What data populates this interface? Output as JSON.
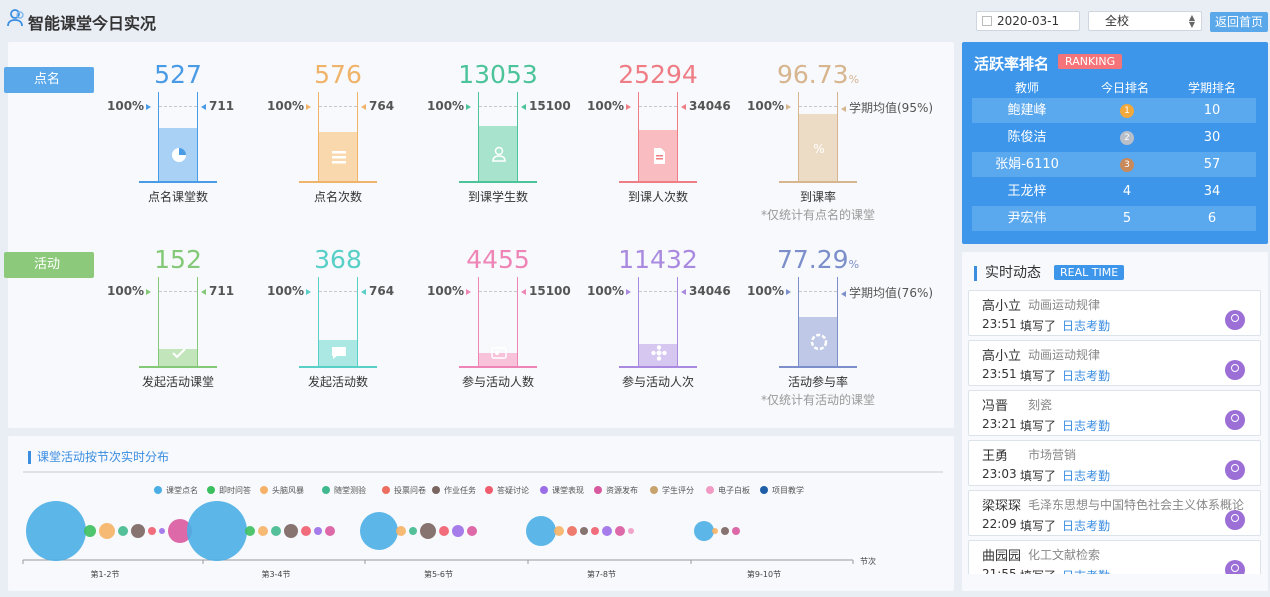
{
  "header": {
    "title": "智能课堂今日实况",
    "date": "2020-03-1",
    "scope": "全校",
    "home_label": "返回首页"
  },
  "rollcall": {
    "tag": "点名",
    "color": "#5aa8ea",
    "metrics": [
      {
        "value": "527",
        "label": "点名课堂数",
        "left": "100%",
        "right": "711",
        "color": "#4a9be6",
        "light": "#a9d0f5",
        "fill": 0.6,
        "icon": "pie-chart-icon"
      },
      {
        "value": "576",
        "label": "点名次数",
        "left": "100%",
        "right": "764",
        "color": "#f0b36a",
        "light": "#fad8ad",
        "fill": 0.55,
        "icon": "list-icon"
      },
      {
        "value": "13053",
        "label": "到课学生数",
        "left": "100%",
        "right": "15100",
        "color": "#4dc39a",
        "light": "#a7e3cd",
        "fill": 0.62,
        "icon": "person-icon"
      },
      {
        "value": "25294",
        "label": "到课人次数",
        "left": "100%",
        "right": "34046",
        "color": "#ef7d86",
        "light": "#f8bcc1",
        "fill": 0.58,
        "icon": "document-icon"
      },
      {
        "value": "96.73",
        "unit": "%",
        "label": "到课率",
        "left": "100%",
        "right": "学期均值(95%)",
        "note": "*仅统计有点名的课堂",
        "color": "#d7b58f",
        "light": "#ecdcc6",
        "fill": 0.75,
        "icon": "percent-icon"
      }
    ]
  },
  "activity": {
    "tag": "活动",
    "color": "#8cc97b",
    "metrics": [
      {
        "value": "152",
        "label": "发起活动课堂",
        "left": "100%",
        "right": "711",
        "color": "#84c978",
        "light": "#c3e5bb",
        "fill": 0.2,
        "icon": "check-icon"
      },
      {
        "value": "368",
        "label": "发起活动数",
        "left": "100%",
        "right": "764",
        "color": "#58cfc7",
        "light": "#ace8e3",
        "fill": 0.3,
        "icon": "chat-icon"
      },
      {
        "value": "4455",
        "label": "参与活动人数",
        "left": "100%",
        "right": "15100",
        "color": "#ef84b7",
        "light": "#f8c2db",
        "fill": 0.15,
        "icon": "card-icon"
      },
      {
        "value": "11432",
        "label": "参与活动人次",
        "left": "100%",
        "right": "34046",
        "color": "#a98ae0",
        "light": "#d6c7f1",
        "fill": 0.25,
        "icon": "flower-icon"
      },
      {
        "value": "77.29",
        "unit": "%",
        "label": "活动参与率",
        "left": "100%",
        "right": "学期均值(76%)",
        "note": "*仅统计有活动的课堂",
        "color": "#7c8fcb",
        "light": "#bfc8e6",
        "fill": 0.55,
        "icon": "ring-icon"
      }
    ]
  },
  "chart_data": {
    "type": "scatter",
    "title": "课堂活动按节次实时分布",
    "xlabel": "节次",
    "categories": [
      "第1-2节",
      "第3-4节",
      "第5-6节",
      "第7-8节",
      "第9-10节"
    ],
    "legend": [
      {
        "name": "课堂点名",
        "color": "#4aaee5"
      },
      {
        "name": "即时问答",
        "color": "#3cbf5e"
      },
      {
        "name": "头脑风暴",
        "color": "#f5b266"
      },
      {
        "name": "随堂测验",
        "color": "#41b98e"
      },
      {
        "name": "投票问卷",
        "color": "#ec6e5e"
      },
      {
        "name": "作业任务",
        "color": "#7a6560"
      },
      {
        "name": "答疑讨论",
        "color": "#ef5d6e"
      },
      {
        "name": "课堂表现",
        "color": "#9b6ee8"
      },
      {
        "name": "资源发布",
        "color": "#d9599f"
      },
      {
        "name": "学生评分",
        "color": "#c9a36e"
      },
      {
        "name": "电子白板",
        "color": "#f19ac4"
      },
      {
        "name": "项目教学",
        "color": "#1f5fa8"
      }
    ],
    "bubbles": [
      {
        "slot": "第1-2节",
        "series": "课堂点名",
        "size": 30
      },
      {
        "slot": "第1-2节",
        "series": "即时问答",
        "size": 6
      },
      {
        "slot": "第1-2节",
        "series": "头脑风暴",
        "size": 8
      },
      {
        "slot": "第1-2节",
        "series": "随堂测验",
        "size": 5
      },
      {
        "slot": "第1-2节",
        "series": "作业任务",
        "size": 7
      },
      {
        "slot": "第1-2节",
        "series": "答疑讨论",
        "size": 4
      },
      {
        "slot": "第1-2节",
        "series": "课堂表现",
        "size": 3
      },
      {
        "slot": "第1-2节",
        "series": "资源发布",
        "size": 12
      },
      {
        "slot": "第3-4节",
        "series": "课堂点名",
        "size": 30
      },
      {
        "slot": "第3-4节",
        "series": "即时问答",
        "size": 5
      },
      {
        "slot": "第3-4节",
        "series": "头脑风暴",
        "size": 5
      },
      {
        "slot": "第3-4节",
        "series": "随堂测验",
        "size": 5
      },
      {
        "slot": "第3-4节",
        "series": "作业任务",
        "size": 7
      },
      {
        "slot": "第3-4节",
        "series": "答疑讨论",
        "size": 5
      },
      {
        "slot": "第3-4节",
        "series": "课堂表现",
        "size": 4
      },
      {
        "slot": "第3-4节",
        "series": "资源发布",
        "size": 5
      },
      {
        "slot": "第5-6节",
        "series": "课堂点名",
        "size": 19
      },
      {
        "slot": "第5-6节",
        "series": "头脑风暴",
        "size": 5
      },
      {
        "slot": "第5-6节",
        "series": "随堂测验",
        "size": 4
      },
      {
        "slot": "第5-6节",
        "series": "作业任务",
        "size": 8
      },
      {
        "slot": "第5-6节",
        "series": "答疑讨论",
        "size": 5
      },
      {
        "slot": "第5-6节",
        "series": "课堂表现",
        "size": 6
      },
      {
        "slot": "第5-6节",
        "series": "资源发布",
        "size": 5
      },
      {
        "slot": "第7-8节",
        "series": "课堂点名",
        "size": 15
      },
      {
        "slot": "第7-8节",
        "series": "头脑风暴",
        "size": 5
      },
      {
        "slot": "第7-8节",
        "series": "投票问卷",
        "size": 5
      },
      {
        "slot": "第7-8节",
        "series": "作业任务",
        "size": 4
      },
      {
        "slot": "第7-8节",
        "series": "答疑讨论",
        "size": 4
      },
      {
        "slot": "第7-8节",
        "series": "课堂表现",
        "size": 5
      },
      {
        "slot": "第7-8节",
        "series": "资源发布",
        "size": 5
      },
      {
        "slot": "第7-8节",
        "series": "电子白板",
        "size": 3
      },
      {
        "slot": "第9-10节",
        "series": "课堂点名",
        "size": 10
      },
      {
        "slot": "第9-10节",
        "series": "头脑风暴",
        "size": 3
      },
      {
        "slot": "第9-10节",
        "series": "作业任务",
        "size": 4
      },
      {
        "slot": "第9-10节",
        "series": "资源发布",
        "size": 4
      }
    ]
  },
  "ranking": {
    "title": "活跃率排名",
    "badge": "RANKING",
    "headers": [
      "教师",
      "今日排名",
      "学期排名"
    ],
    "rows": [
      {
        "name": "鲍建峰",
        "today": "1",
        "term": "10",
        "medal": "gold"
      },
      {
        "name": "陈俊洁",
        "today": "2",
        "term": "30",
        "medal": "silver"
      },
      {
        "name": "张娟-6110",
        "today": "3",
        "term": "57",
        "medal": "bronze"
      },
      {
        "name": "王龙梓",
        "today": "4",
        "term": "34",
        "medal": ""
      },
      {
        "name": "尹宏伟",
        "today": "5",
        "term": "6",
        "medal": ""
      }
    ]
  },
  "feed": {
    "title": "实时动态",
    "badge": "REAL TIME",
    "items": [
      {
        "name": "高小立",
        "course": "动画运动规律",
        "time": "23:51",
        "action": "填写了",
        "link": "日志考勤"
      },
      {
        "name": "高小立",
        "course": "动画运动规律",
        "time": "23:51",
        "action": "填写了",
        "link": "日志考勤"
      },
      {
        "name": "冯晋",
        "course": "刻瓷",
        "time": "23:21",
        "action": "填写了",
        "link": "日志考勤"
      },
      {
        "name": "王勇",
        "course": "市场营销",
        "time": "23:03",
        "action": "填写了",
        "link": "日志考勤"
      },
      {
        "name": "梁琛琛",
        "course": "毛泽东思想与中国特色社会主义体系概论",
        "time": "22:09",
        "action": "填写了",
        "link": "日志考勤"
      },
      {
        "name": "曲园园",
        "course": "化工文献检索",
        "time": "21:55",
        "action": "填写了",
        "link": "日志考勤"
      }
    ]
  }
}
